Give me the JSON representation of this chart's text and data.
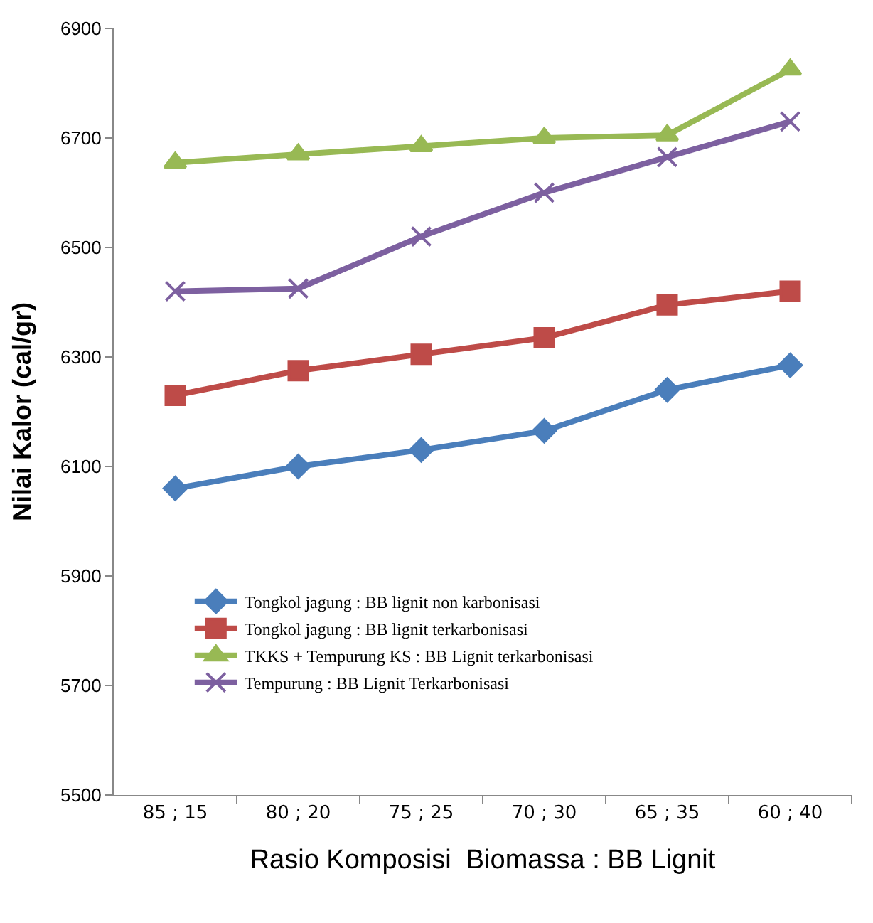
{
  "chart_data": {
    "type": "line",
    "xlabel": "Rasio Komposisi  Biomassa : BB Lignit",
    "ylabel": "Nilai Kalor (cal/gr)",
    "categories": [
      "85 ; 15",
      "80 ; 20",
      "75 ; 25",
      "70 ; 30",
      "65 ; 35",
      "60 ; 40"
    ],
    "ylim": [
      5500,
      6900
    ],
    "yticks": [
      5500,
      5700,
      5900,
      6100,
      6300,
      6500,
      6700,
      6900
    ],
    "legend": "bottom left",
    "series": [
      {
        "name": "Tongkol jagung : BB lignit non karbonisasi",
        "color": "#4a7ebb",
        "marker": "diamond",
        "values": [
          6060,
          6100,
          6130,
          6165,
          6240,
          6285
        ]
      },
      {
        "name": "Tongkol jagung : BB lignit terkarbonisasi",
        "color": "#be4b48",
        "marker": "square",
        "values": [
          6230,
          6275,
          6305,
          6335,
          6395,
          6420
        ]
      },
      {
        "name": "TKKS + Tempurung KS : BB Lignit terkarbonisasi",
        "color": "#98b954",
        "marker": "triangle",
        "values": [
          6655,
          6670,
          6685,
          6700,
          6705,
          6825
        ]
      },
      {
        "name": "Tempurung : BB Lignit Terkarbonisasi",
        "color": "#7d60a0",
        "marker": "cross",
        "values": [
          6420,
          6425,
          6520,
          6600,
          6665,
          6730
        ]
      }
    ]
  }
}
